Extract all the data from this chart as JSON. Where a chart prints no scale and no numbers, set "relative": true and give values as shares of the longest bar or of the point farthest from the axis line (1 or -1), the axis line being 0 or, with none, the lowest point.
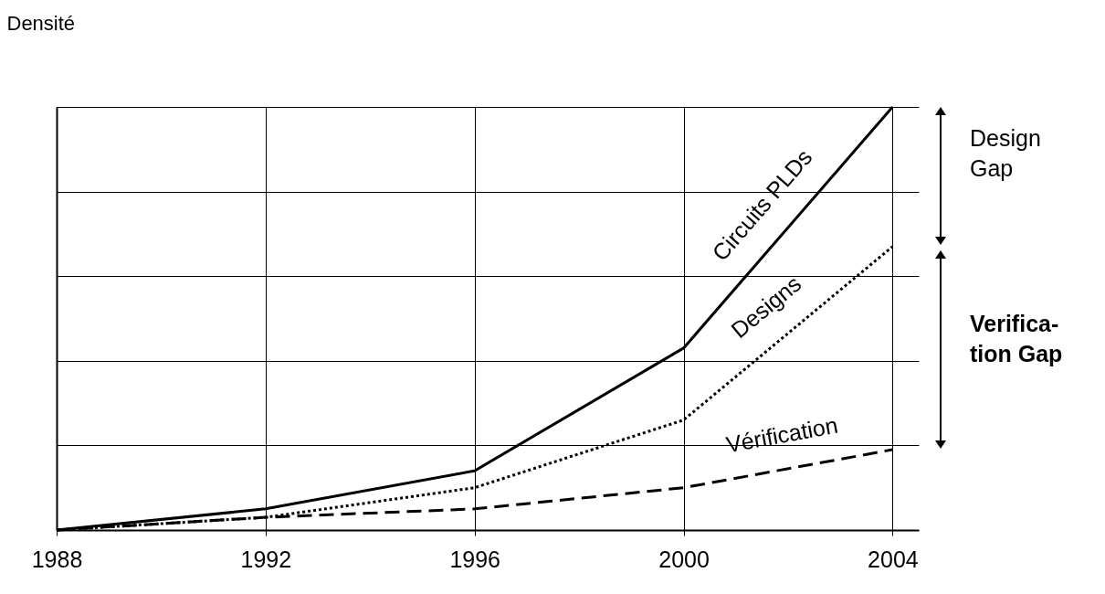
{
  "chart_data": {
    "type": "line",
    "ylabel": "Densité",
    "relative": true,
    "x": [
      1988,
      1992,
      1996,
      2000,
      2004
    ],
    "xlim": [
      1988,
      2004.5
    ],
    "xticks": [
      1988,
      1992,
      1996,
      2000,
      2004
    ],
    "grid": true,
    "legend": false,
    "marker": "none",
    "series": [
      {
        "name": "Circuits PLDs",
        "color": "#000000",
        "line_style": "solid",
        "values": [
          0,
          0.05,
          0.14,
          0.43,
          1
        ]
      },
      {
        "name": "Designs",
        "color": "#000000",
        "line_style": "dotted",
        "values": [
          0,
          0.03,
          0.1,
          0.26,
          0.67
        ]
      },
      {
        "name": "Vérification",
        "color": "#000000",
        "line_style": "dashed",
        "values": [
          0,
          0.03,
          0.05,
          0.1,
          0.19
        ]
      }
    ],
    "annotations": [
      "Design Gap",
      "Verifica-tion Gap"
    ]
  }
}
